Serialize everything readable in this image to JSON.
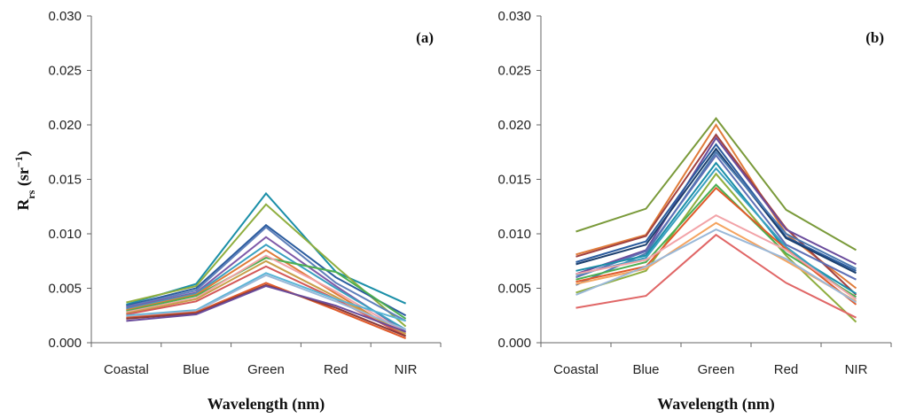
{
  "chart_data": [
    {
      "type": "line",
      "panel_label": "(a)",
      "categories": [
        "Coastal",
        "Blue",
        "Green",
        "Red",
        "NIR"
      ],
      "xlabel": "Wavelength (nm)",
      "ylabel": "Rrs (sr-1)",
      "ylabel_parts": {
        "base": "R",
        "sub": "rs",
        "open": " (sr",
        "sup": "−1",
        "close": ")"
      },
      "ylim": [
        0,
        0.03
      ],
      "yticks": [
        "0.000",
        "0.005",
        "0.010",
        "0.015",
        "0.020",
        "0.025",
        "0.030"
      ],
      "grid": false,
      "series": [
        {
          "name": "s1",
          "color": "#1b8fa8",
          "values": [
            0.0035,
            0.0054,
            0.0137,
            0.0065,
            0.0036
          ]
        },
        {
          "name": "s2",
          "color": "#8fae3f",
          "values": [
            0.0037,
            0.0052,
            0.0127,
            0.007,
            0.0015
          ]
        },
        {
          "name": "s3",
          "color": "#2b5c9e",
          "values": [
            0.0034,
            0.005,
            0.0108,
            0.006,
            0.0025
          ]
        },
        {
          "name": "s4",
          "color": "#5e7fba",
          "values": [
            0.0033,
            0.0048,
            0.0106,
            0.0055,
            0.002
          ]
        },
        {
          "name": "s5",
          "color": "#7f5aa8",
          "values": [
            0.0032,
            0.0046,
            0.0097,
            0.0052,
            0.001
          ]
        },
        {
          "name": "s6",
          "color": "#3aa0c0",
          "values": [
            0.0031,
            0.0045,
            0.009,
            0.005,
            0.0012
          ]
        },
        {
          "name": "s7",
          "color": "#e07b39",
          "values": [
            0.003,
            0.0044,
            0.0085,
            0.0045,
            0.0006
          ]
        },
        {
          "name": "s8",
          "color": "#4caf50",
          "values": [
            0.0029,
            0.0043,
            0.0078,
            0.0065,
            0.0022
          ]
        },
        {
          "name": "s9",
          "color": "#f2a3a8",
          "values": [
            0.0028,
            0.0041,
            0.008,
            0.0047,
            0.0009
          ]
        },
        {
          "name": "s10",
          "color": "#c8a04a",
          "values": [
            0.0027,
            0.004,
            0.0075,
            0.0042,
            0.0008
          ]
        },
        {
          "name": "s11",
          "color": "#d35858",
          "values": [
            0.0026,
            0.0038,
            0.007,
            0.004,
            0.0006
          ]
        },
        {
          "name": "s12",
          "color": "#5ab4d6",
          "values": [
            0.0025,
            0.003,
            0.0064,
            0.004,
            0.002
          ]
        },
        {
          "name": "s13",
          "color": "#9ab8d8",
          "values": [
            0.0024,
            0.0029,
            0.0062,
            0.0038,
            0.0012
          ]
        },
        {
          "name": "s14",
          "color": "#e05a2a",
          "values": [
            0.0023,
            0.0028,
            0.0055,
            0.003,
            0.0004
          ]
        },
        {
          "name": "s15",
          "color": "#8b3a3a",
          "values": [
            0.0022,
            0.0027,
            0.0053,
            0.0032,
            0.0006
          ]
        },
        {
          "name": "s16",
          "color": "#6a4c9c",
          "values": [
            0.002,
            0.0026,
            0.0052,
            0.0034,
            0.001
          ]
        }
      ]
    },
    {
      "type": "line",
      "panel_label": "(b)",
      "categories": [
        "Coastal",
        "Blue",
        "Green",
        "Red",
        "NIR"
      ],
      "xlabel": "Wavelength (nm)",
      "ylabel": "",
      "ylim": [
        0,
        0.03
      ],
      "yticks": [
        "0.000",
        "0.005",
        "0.010",
        "0.015",
        "0.020",
        "0.025",
        "0.030"
      ],
      "grid": false,
      "series": [
        {
          "name": "s1",
          "color": "#7a9a3a",
          "values": [
            0.0102,
            0.0123,
            0.0206,
            0.0122,
            0.0085
          ]
        },
        {
          "name": "s2",
          "color": "#e07b39",
          "values": [
            0.0081,
            0.0099,
            0.02,
            0.01,
            0.005
          ]
        },
        {
          "name": "s3",
          "color": "#a04040",
          "values": [
            0.0079,
            0.0098,
            0.0191,
            0.0105,
            0.0044
          ]
        },
        {
          "name": "s4",
          "color": "#6a4c9c",
          "values": [
            0.0063,
            0.0085,
            0.0188,
            0.0104,
            0.0072
          ]
        },
        {
          "name": "s5",
          "color": "#2b5c9e",
          "values": [
            0.0074,
            0.0093,
            0.0182,
            0.0097,
            0.0066
          ]
        },
        {
          "name": "s6",
          "color": "#1b3f6e",
          "values": [
            0.0072,
            0.009,
            0.0178,
            0.0096,
            0.0064
          ]
        },
        {
          "name": "s7",
          "color": "#4a7ab0",
          "values": [
            0.0053,
            0.0082,
            0.0175,
            0.01,
            0.0068
          ]
        },
        {
          "name": "s8",
          "color": "#5e6fb5",
          "values": [
            0.006,
            0.0084,
            0.0172,
            0.009,
            0.0058
          ]
        },
        {
          "name": "s9",
          "color": "#1b8fa8",
          "values": [
            0.0066,
            0.008,
            0.0165,
            0.0085,
            0.0045
          ]
        },
        {
          "name": "s10",
          "color": "#3aa0c0",
          "values": [
            0.0062,
            0.0078,
            0.016,
            0.0088,
            0.004
          ]
        },
        {
          "name": "s11",
          "color": "#8fae3f",
          "values": [
            0.0046,
            0.0066,
            0.0155,
            0.008,
            0.0019
          ]
        },
        {
          "name": "s12",
          "color": "#4caf50",
          "values": [
            0.0058,
            0.0074,
            0.0145,
            0.0082,
            0.0042
          ]
        },
        {
          "name": "s13",
          "color": "#e05a2a",
          "values": [
            0.0056,
            0.007,
            0.0142,
            0.0086,
            0.0035
          ]
        },
        {
          "name": "s14",
          "color": "#f4a460",
          "values": [
            0.0054,
            0.0068,
            0.011,
            0.0075,
            0.0038
          ]
        },
        {
          "name": "s15",
          "color": "#f2a3a8",
          "values": [
            0.0063,
            0.0076,
            0.0117,
            0.0085,
            0.004
          ]
        },
        {
          "name": "s16",
          "color": "#9ab8d8",
          "values": [
            0.0044,
            0.007,
            0.0104,
            0.0077,
            0.0037
          ]
        },
        {
          "name": "s17",
          "color": "#e06666",
          "values": [
            0.0032,
            0.0043,
            0.0099,
            0.0055,
            0.0023
          ]
        }
      ]
    }
  ]
}
